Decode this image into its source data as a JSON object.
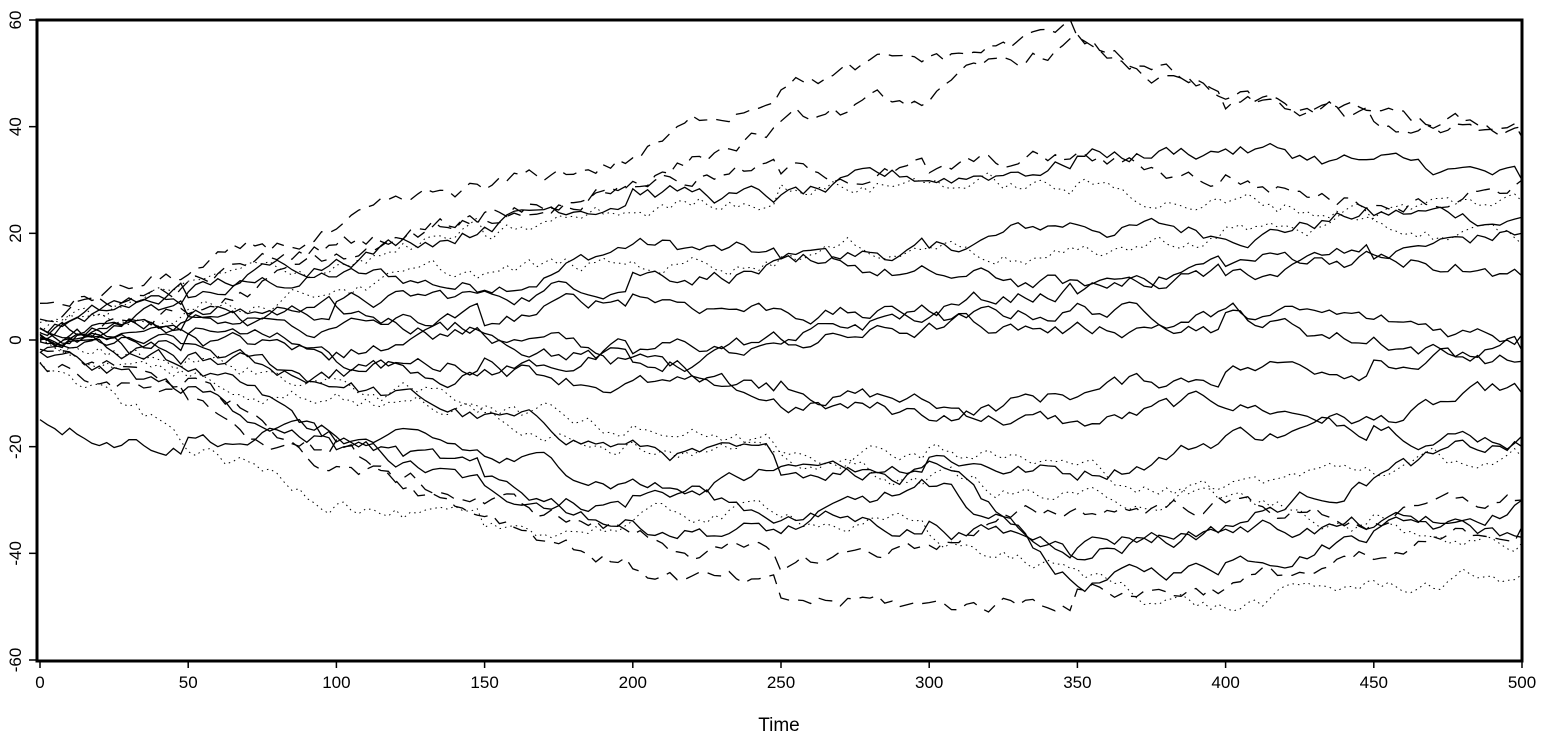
{
  "chart_data": {
    "type": "line",
    "title": "",
    "xlabel": "Time",
    "ylabel": "",
    "xlim": [
      0,
      500
    ],
    "ylim": [
      -60,
      60
    ],
    "xticks": [
      0,
      50,
      100,
      150,
      200,
      250,
      300,
      350,
      400,
      450,
      500
    ],
    "yticks": [
      -60,
      -40,
      -20,
      0,
      20,
      40,
      60
    ],
    "x_tick_labels": [
      "0",
      "50",
      "100",
      "150",
      "200",
      "250",
      "300",
      "350",
      "400",
      "450",
      "500"
    ],
    "y_tick_labels": [
      "-60",
      "-40",
      "-20",
      "0",
      "20",
      "40",
      "60"
    ],
    "grid": false,
    "legend": "none",
    "line_color": "#000000",
    "series_styles": [
      "solid",
      "dashed",
      "dotted"
    ],
    "series": [
      {
        "style": "solid",
        "x": [
          0,
          50,
          100,
          150,
          200,
          250,
          300,
          350,
          400,
          450,
          500
        ],
        "values": [
          0,
          9,
          12,
          10,
          18,
          15,
          17,
          22,
          20,
          24,
          23
        ]
      },
      {
        "style": "solid",
        "x": [
          0,
          50,
          100,
          150,
          200,
          250,
          300,
          350,
          400,
          450,
          500
        ],
        "values": [
          2,
          -5,
          -20,
          -28,
          -30,
          -25,
          -24,
          -46,
          -42,
          -35,
          -30
        ]
      },
      {
        "style": "solid",
        "x": [
          0,
          50,
          100,
          150,
          200,
          250,
          300,
          350,
          400,
          450,
          500
        ],
        "values": [
          0,
          3,
          5,
          2,
          -4,
          -8,
          -12,
          -16,
          -12,
          -15,
          -10
        ]
      },
      {
        "style": "solid",
        "x": [
          0,
          50,
          100,
          150,
          200,
          250,
          300,
          350,
          400,
          450,
          500
        ],
        "values": [
          -1,
          -2,
          -8,
          -15,
          -20,
          -24,
          -22,
          -25,
          -18,
          -16,
          -18
        ]
      },
      {
        "style": "solid",
        "x": [
          0,
          50,
          100,
          150,
          200,
          250,
          300,
          350,
          400,
          450,
          500
        ],
        "values": [
          1,
          4,
          6,
          8,
          12,
          14,
          12,
          10,
          15,
          16,
          20
        ]
      },
      {
        "style": "solid",
        "x": [
          0,
          50,
          100,
          150,
          200,
          250,
          300,
          350,
          400,
          450,
          500
        ],
        "values": [
          -2,
          0,
          -3,
          -6,
          -2,
          0,
          2,
          6,
          4,
          0,
          -4
        ]
      },
      {
        "style": "solid",
        "x": [
          0,
          50,
          100,
          150,
          200,
          250,
          300,
          350,
          400,
          450,
          500
        ],
        "values": [
          2,
          8,
          16,
          22,
          28,
          26,
          30,
          34,
          36,
          33,
          30
        ]
      },
      {
        "style": "solid",
        "x": [
          0,
          50,
          100,
          150,
          200,
          250,
          300,
          350,
          400,
          450,
          500
        ],
        "values": [
          -3,
          -10,
          -18,
          -22,
          -26,
          -33,
          -35,
          -38,
          -35,
          -25,
          -20
        ]
      },
      {
        "style": "solid",
        "x": [
          0,
          50,
          100,
          150,
          200,
          250,
          300,
          350,
          400,
          450,
          500
        ],
        "values": [
          0,
          -4,
          -6,
          -4,
          -8,
          -12,
          -14,
          -10,
          -6,
          -4,
          -2
        ]
      },
      {
        "style": "solid",
        "x": [
          0,
          50,
          100,
          150,
          200,
          250,
          300,
          350,
          400,
          450,
          500
        ],
        "values": [
          1,
          5,
          2,
          4,
          8,
          6,
          4,
          2,
          5,
          3,
          1
        ]
      },
      {
        "style": "solid",
        "x": [
          0,
          50,
          100,
          150,
          200,
          250,
          300,
          350,
          400,
          450,
          500
        ],
        "values": [
          -15,
          -19,
          -18,
          -26,
          -34,
          -36,
          -28,
          -40,
          -35,
          -35,
          -37
        ]
      },
      {
        "style": "solid",
        "x": [
          0,
          50,
          100,
          150,
          200,
          250,
          300,
          350,
          400,
          450,
          500
        ],
        "values": [
          0,
          2,
          -2,
          2,
          -4,
          -2,
          6,
          10,
          12,
          16,
          12
        ]
      },
      {
        "style": "dashed",
        "x": [
          0,
          50,
          100,
          150,
          200,
          250,
          300,
          350,
          400,
          450,
          500
        ],
        "values": [
          6,
          12,
          20,
          28,
          34,
          48,
          52,
          58,
          45,
          40,
          40
        ]
      },
      {
        "style": "dashed",
        "x": [
          0,
          50,
          100,
          150,
          200,
          250,
          300,
          350,
          400,
          450,
          500
        ],
        "values": [
          0,
          5,
          15,
          22,
          30,
          40,
          45,
          56,
          44,
          42,
          38
        ]
      },
      {
        "style": "dashed",
        "x": [
          0,
          50,
          100,
          150,
          200,
          250,
          300,
          350,
          400,
          450,
          500
        ],
        "values": [
          -2,
          -8,
          -20,
          -32,
          -42,
          -48,
          -50,
          -48,
          -46,
          -42,
          -35
        ]
      },
      {
        "style": "dashed",
        "x": [
          0,
          50,
          100,
          150,
          200,
          250,
          300,
          350,
          400,
          450,
          500
        ],
        "values": [
          4,
          10,
          18,
          24,
          30,
          32,
          32,
          34,
          30,
          26,
          30
        ]
      },
      {
        "style": "dashed",
        "x": [
          0,
          50,
          100,
          150,
          200,
          250,
          300,
          350,
          400,
          450,
          500
        ],
        "values": [
          -4,
          -12,
          -24,
          -30,
          -36,
          -42,
          -38,
          -32,
          -30,
          -34,
          -30
        ]
      },
      {
        "style": "dotted",
        "x": [
          0,
          50,
          100,
          150,
          200,
          250,
          300,
          350,
          400,
          450,
          500
        ],
        "values": [
          -4,
          -20,
          -30,
          -36,
          -34,
          -32,
          -36,
          -44,
          -50,
          -46,
          -44
        ]
      },
      {
        "style": "dotted",
        "x": [
          0,
          50,
          100,
          150,
          200,
          250,
          300,
          350,
          400,
          450,
          500
        ],
        "values": [
          2,
          10,
          14,
          20,
          24,
          28,
          30,
          28,
          26,
          24,
          26
        ]
      },
      {
        "style": "dotted",
        "x": [
          0,
          50,
          100,
          150,
          200,
          250,
          300,
          350,
          400,
          450,
          500
        ],
        "values": [
          0,
          -6,
          -10,
          -14,
          -18,
          -22,
          -26,
          -30,
          -28,
          -24,
          -22
        ]
      },
      {
        "style": "dotted",
        "x": [
          0,
          50,
          100,
          150,
          200,
          250,
          300,
          350,
          400,
          450,
          500
        ],
        "values": [
          1,
          6,
          10,
          12,
          14,
          16,
          18,
          16,
          20,
          22,
          18
        ]
      },
      {
        "style": "dotted",
        "x": [
          0,
          50,
          100,
          150,
          200,
          250,
          300,
          350,
          400,
          450,
          500
        ],
        "values": [
          -1,
          -4,
          -8,
          -12,
          -16,
          -20,
          -20,
          -24,
          -30,
          -34,
          -38
        ]
      }
    ]
  }
}
